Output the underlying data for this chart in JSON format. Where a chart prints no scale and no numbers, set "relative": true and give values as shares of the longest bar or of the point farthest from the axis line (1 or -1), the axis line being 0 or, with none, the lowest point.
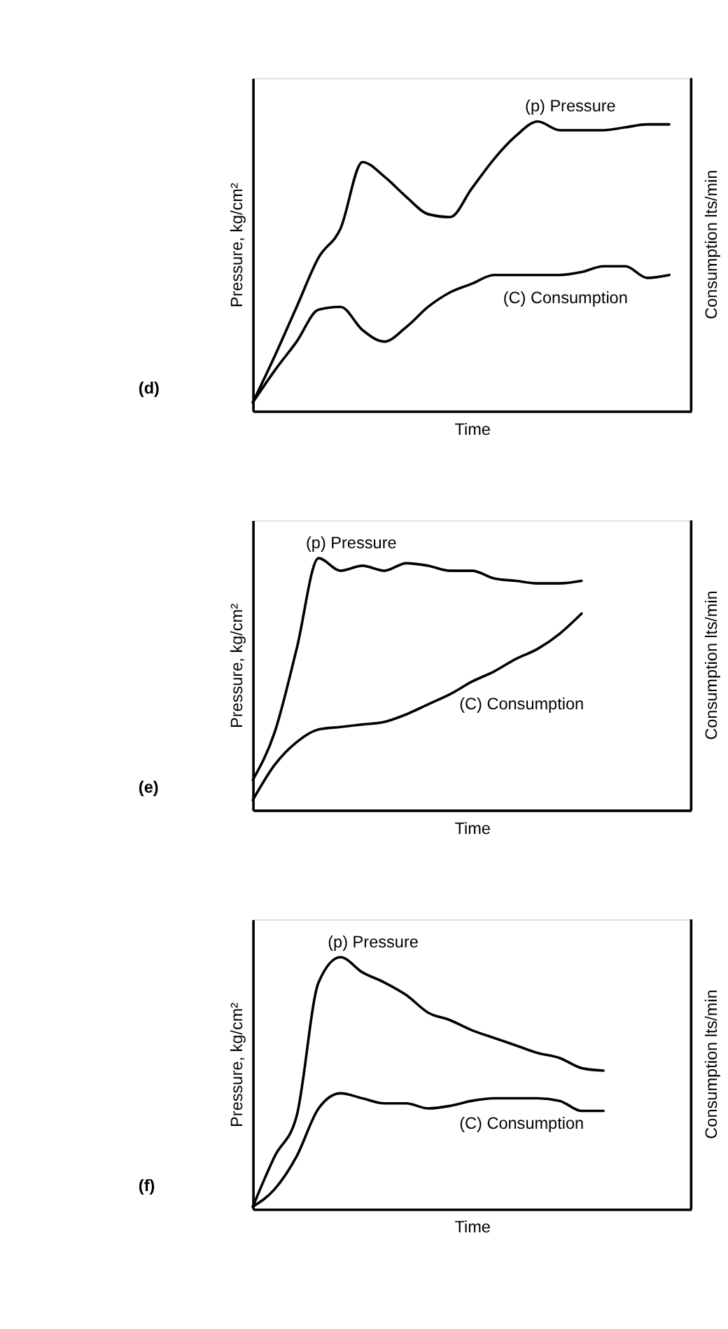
{
  "chart_data": [
    {
      "type": "line",
      "relative": true,
      "xlabel": "Time",
      "ylabel": "Pressure, kg/cm²",
      "y2label": "Consumption lts/min",
      "annotations": [
        "(d)"
      ],
      "grid": false,
      "categories": [
        null,
        null,
        null,
        null,
        null,
        null,
        null,
        null,
        null,
        null,
        null,
        null,
        null,
        null,
        null,
        null,
        null,
        null,
        null,
        null,
        null
      ],
      "series": [
        {
          "name": "(p) Pressure",
          "color": "#000000",
          "values": [
            0.03,
            0.19,
            0.36,
            0.53,
            0.63,
            0.86,
            0.81,
            0.74,
            0.68,
            0.67,
            0.77,
            0.87,
            0.95,
            1.0,
            0.97,
            0.97,
            0.97,
            0.98,
            0.99,
            0.99,
            null
          ]
        },
        {
          "name": "(C) Consumption",
          "color": "#000000",
          "values": [
            0.03,
            0.14,
            0.24,
            0.35,
            0.36,
            0.28,
            0.24,
            0.29,
            0.36,
            0.41,
            0.44,
            0.47,
            0.47,
            0.47,
            0.47,
            0.48,
            0.5,
            0.5,
            0.46,
            0.47,
            null
          ]
        }
      ]
    },
    {
      "type": "line",
      "relative": true,
      "xlabel": "Time",
      "ylabel": "Pressure, kg/cm²",
      "y2label": "Consumption lts/min",
      "annotations": [
        "(e)"
      ],
      "grid": false,
      "categories": [
        null,
        null,
        null,
        null,
        null,
        null,
        null,
        null,
        null,
        null,
        null,
        null,
        null,
        null,
        null,
        null,
        null,
        null,
        null,
        null,
        null
      ],
      "series": [
        {
          "name": "(p) Pressure",
          "color": "#000000",
          "values": [
            0.12,
            0.31,
            0.64,
            1.0,
            0.95,
            0.97,
            0.95,
            0.98,
            0.97,
            0.95,
            0.95,
            0.92,
            0.91,
            0.9,
            0.9,
            0.91,
            null,
            null,
            null,
            null,
            null
          ]
        },
        {
          "name": "(C) Consumption",
          "color": "#000000",
          "values": [
            0.04,
            0.18,
            0.27,
            0.32,
            0.33,
            0.34,
            0.35,
            0.38,
            0.42,
            0.46,
            0.51,
            0.55,
            0.6,
            0.64,
            0.7,
            0.78,
            null,
            null,
            null,
            null,
            null
          ]
        }
      ]
    },
    {
      "type": "line",
      "relative": true,
      "xlabel": "Time",
      "ylabel": "Pressure, kg/cm²",
      "y2label": "Consumption lts/min",
      "annotations": [
        "(f)"
      ],
      "grid": false,
      "categories": [
        null,
        null,
        null,
        null,
        null,
        null,
        null,
        null,
        null,
        null,
        null,
        null,
        null,
        null,
        null,
        null,
        null,
        null,
        null,
        null,
        null
      ],
      "series": [
        {
          "name": "(p) Pressure",
          "color": "#000000",
          "values": [
            0.01,
            0.21,
            0.37,
            0.9,
            1.0,
            0.94,
            0.9,
            0.85,
            0.78,
            0.75,
            0.71,
            0.68,
            0.65,
            0.62,
            0.6,
            0.56,
            0.55,
            null,
            null,
            null,
            null
          ]
        },
        {
          "name": "(C) Consumption",
          "color": "#000000",
          "values": [
            0.01,
            0.08,
            0.21,
            0.4,
            0.46,
            0.44,
            0.42,
            0.42,
            0.4,
            0.41,
            0.43,
            0.44,
            0.44,
            0.44,
            0.43,
            0.39,
            0.39,
            null,
            null,
            null,
            null
          ]
        }
      ]
    }
  ]
}
